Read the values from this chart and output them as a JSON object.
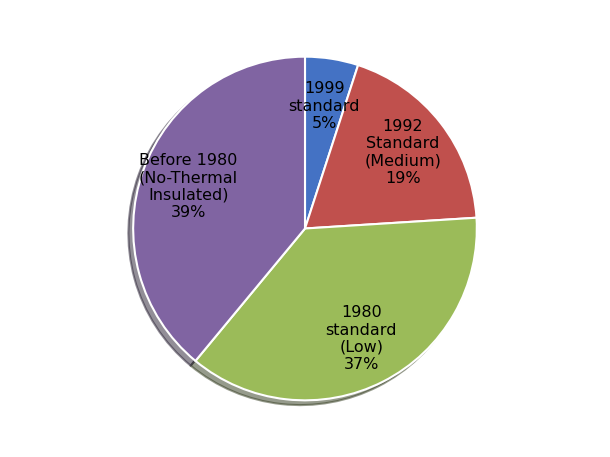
{
  "labels": [
    "1999\nstandard\n5%",
    "1992\nStandard\n(Medium)\n19%",
    "1980\nstandard\n(Low)\n37%",
    "Before 1980\n(No-Thermal\nInsulated)\n39%"
  ],
  "sizes": [
    5,
    19,
    37,
    39
  ],
  "colors": [
    "#4472C4",
    "#C0504D",
    "#9BBB59",
    "#8064A2"
  ],
  "startangle": 90,
  "background_color": "#ffffff",
  "text_color": "#000000",
  "fontsize": 11.5,
  "labeldistance": 0.72
}
